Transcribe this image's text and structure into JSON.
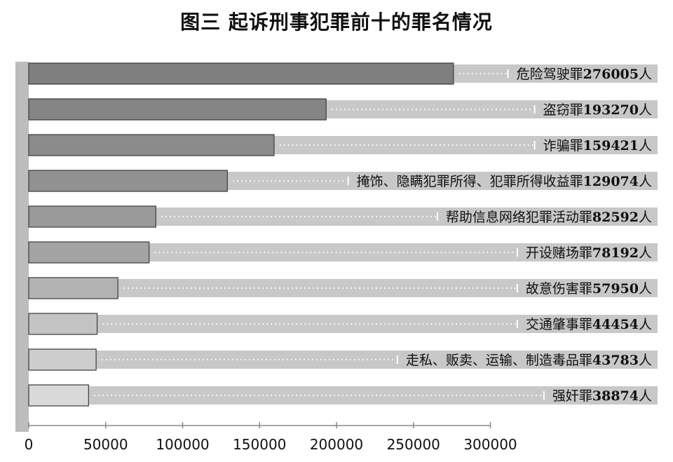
{
  "chart_data": {
    "type": "bar",
    "orientation": "horizontal",
    "title": "图三  起诉刑事犯罪前十的罪名情况",
    "categories": [
      "危险驾驶罪",
      "盗窃罪",
      "诈骗罪",
      "掩饰、隐瞒犯罪所得、犯罪所得收益罪",
      "帮助信息网络犯罪活动罪",
      "开设赌场罪",
      "故意伤害罪",
      "交通肇事罪",
      "走私、贩卖、运输、制造毒品罪",
      "强奸罪"
    ],
    "values": [
      276005,
      193270,
      159421,
      129074,
      82592,
      78192,
      57950,
      44454,
      43783,
      38874
    ],
    "unit": "人",
    "x_ticks": [
      "0",
      "50000",
      "100000",
      "150000",
      "200000",
      "250000",
      "300000"
    ],
    "xlim": [
      0,
      300000
    ],
    "grid": false,
    "colors": {
      "bar_fills": [
        "#7f7f7f",
        "#858585",
        "#8b8b8b",
        "#919191",
        "#9a9a9a",
        "#a3a3a3",
        "#b3b3b3",
        "#c3c3c3",
        "#cdcdcd",
        "#d9d9d9"
      ],
      "bar_stroke": "#3a3a3a",
      "track": "#c8c8c8",
      "axis_band": "#bdbdbd",
      "leader": "#ffffff"
    }
  }
}
